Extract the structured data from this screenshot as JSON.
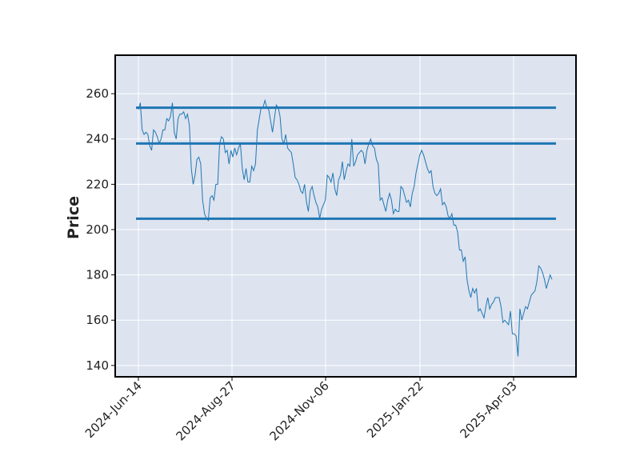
{
  "chart_data": {
    "type": "line",
    "title": "",
    "xlabel": "",
    "ylabel": "Price",
    "ylim": [
      135,
      277
    ],
    "y_ticks": [
      140,
      160,
      180,
      200,
      220,
      240,
      260
    ],
    "x_tick_labels": [
      "2024-Jun-14",
      "2024-Aug-27",
      "2024-Nov-06",
      "2025-Jan-22",
      "2025-Apr-03"
    ],
    "grid": true,
    "legend": "none",
    "colors": {
      "background": "#dde3ef",
      "grid": "#ffffff",
      "series": "#1f77b4",
      "levels": "#1f77b4",
      "frame": "#000000"
    },
    "horizontal_levels": [
      253.8,
      238.0,
      204.8
    ],
    "series": [
      {
        "values": [
          253,
          256,
          244,
          242,
          243,
          242,
          237,
          235,
          244,
          243,
          241,
          238,
          240,
          244,
          244,
          249,
          248,
          250,
          256,
          243,
          240,
          249,
          251,
          251,
          252,
          249,
          251,
          246,
          227,
          220,
          224,
          231,
          232,
          229,
          213,
          207,
          205,
          204,
          214,
          215,
          213,
          220,
          220,
          238,
          241,
          240,
          234,
          235,
          229,
          235,
          232,
          236,
          233,
          236,
          238,
          227,
          222,
          227,
          221,
          221,
          228,
          226,
          229,
          244,
          249,
          254,
          254,
          257,
          254,
          253,
          248,
          243,
          249,
          255,
          254,
          250,
          240,
          238,
          242,
          236,
          235,
          234,
          229,
          223,
          222,
          220,
          217,
          216,
          220,
          212,
          208,
          217,
          219,
          215,
          212,
          210,
          205,
          209,
          211,
          213,
          224,
          223,
          221,
          225,
          218,
          215,
          222,
          224,
          230,
          222,
          226,
          229,
          228,
          240,
          228,
          230,
          233,
          234,
          235,
          234,
          229,
          235,
          238,
          240,
          237,
          236,
          231,
          229,
          213,
          214,
          211,
          208,
          213,
          216,
          213,
          207,
          209,
          208,
          208,
          219,
          218,
          215,
          212,
          213,
          210,
          216,
          219,
          225,
          229,
          233,
          235,
          233,
          230,
          227,
          225,
          226,
          219,
          216,
          215,
          216,
          218,
          211,
          212,
          210,
          206,
          205,
          207,
          202,
          202,
          199,
          191,
          191,
          186,
          188,
          178,
          173,
          170,
          174,
          172,
          174,
          164,
          165,
          163,
          161,
          166,
          170,
          165,
          167,
          168,
          170,
          170,
          170,
          166,
          159,
          160,
          159,
          158,
          164,
          154,
          154,
          153,
          144,
          165,
          160,
          163,
          166,
          165,
          168,
          171,
          172,
          173,
          177,
          184,
          183,
          181,
          178,
          174,
          177,
          180,
          178
        ]
      }
    ]
  }
}
